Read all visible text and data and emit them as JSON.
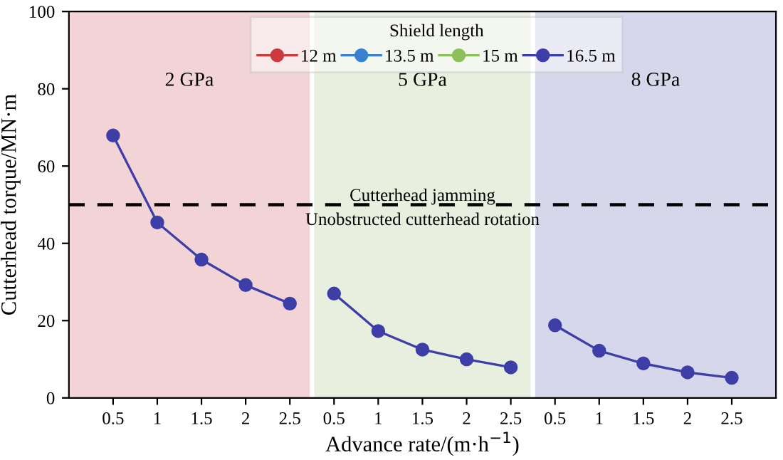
{
  "chart_data": {
    "type": "line",
    "xlabel": "Advance rate/(m·h$^{−1}$)",
    "ylabel": "Cutterhead torque/MN·m",
    "legend_title": "Shield length",
    "categories": [
      "0.5",
      "1",
      "1.5",
      "2",
      "2.5",
      "0.5",
      "1",
      "1.5",
      "2",
      "2.5",
      "0.5",
      "1",
      "1.5",
      "2",
      "2.5"
    ],
    "ylim": [
      0,
      100
    ],
    "yticks": [
      0,
      20,
      40,
      60,
      80,
      100
    ],
    "series": [
      {
        "name": "12 m",
        "color": "#cc3a3e",
        "values": [
          null,
          null,
          null,
          null,
          null,
          null,
          null,
          null,
          null,
          null,
          null,
          null,
          null,
          null,
          null
        ]
      },
      {
        "name": "13.5 m",
        "color": "#3a80d0",
        "values": [
          null,
          null,
          null,
          null,
          null,
          null,
          null,
          null,
          null,
          null,
          null,
          null,
          null,
          null,
          null
        ]
      },
      {
        "name": "15 m",
        "color": "#8cc05a",
        "values": [
          null,
          null,
          null,
          null,
          null,
          null,
          null,
          null,
          null,
          null,
          null,
          null,
          null,
          null,
          null
        ]
      },
      {
        "name": "16.5 m",
        "color": "#3d3ea8",
        "values": [
          67.9,
          45.4,
          35.8,
          29.2,
          24.4,
          null,
          null,
          null,
          null,
          null,
          null,
          null,
          null,
          null,
          null
        ]
      },
      {
        "color": "#3d3ea8",
        "values": [
          null,
          null,
          null,
          null,
          null,
          27,
          17.3,
          12.5,
          10,
          7.9,
          null,
          null,
          null,
          null,
          null
        ]
      },
      {
        "color": "#3d3ea8",
        "values": [
          null,
          null,
          null,
          null,
          null,
          null,
          null,
          null,
          null,
          null,
          18.8,
          12.2,
          8.9,
          6.6,
          5.2
        ]
      }
    ],
    "ref_lines": [
      {
        "axis": "y",
        "value": 50,
        "label": "Cutterhead jamming",
        "color": "#000000",
        "line_style": "dashed"
      }
    ],
    "annotations": [
      "2 GPa",
      "5 GPa",
      "8 GPa",
      {
        "text": "Unobstructed cutterhead rotation",
        "y": 50
      }
    ],
    "marker": "circle",
    "line_style": "solid",
    "grid": false,
    "legend": "top"
  }
}
